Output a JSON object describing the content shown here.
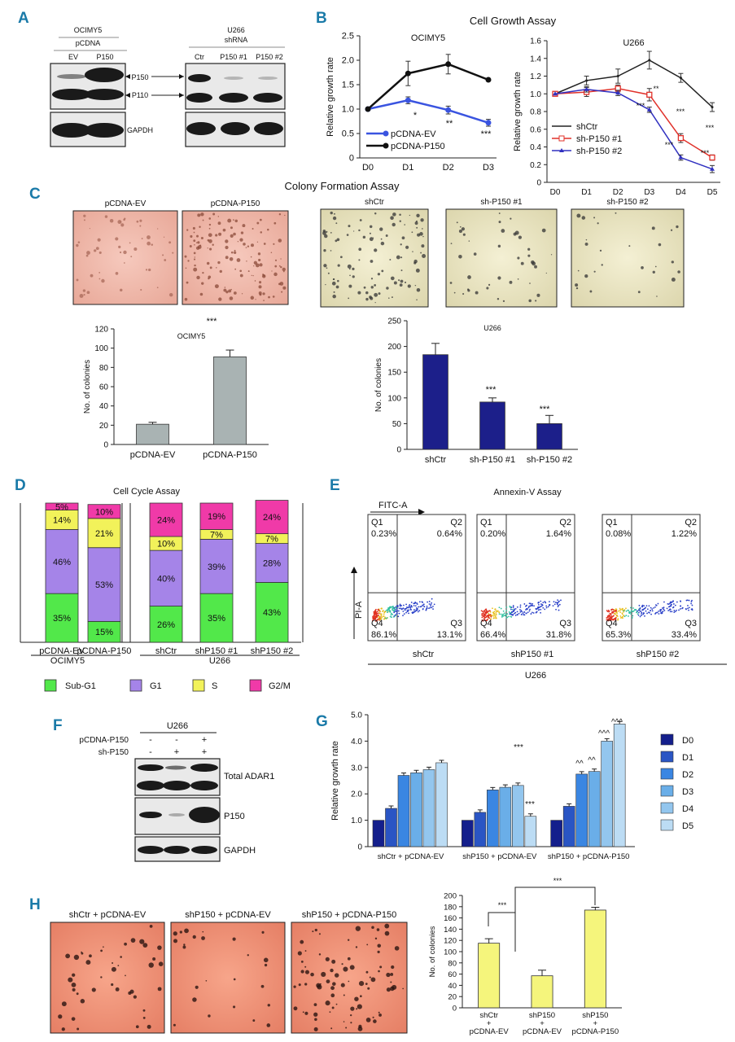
{
  "panels": {
    "A": {
      "letter": "A",
      "left": {
        "cell": "OCIMY5",
        "construct": "pCDNA",
        "lanes": [
          "EV",
          "P150"
        ]
      },
      "right": {
        "cell": "U266",
        "construct": "shRNA",
        "lanes": [
          "Ctr",
          "P150 #1",
          "P150 #2"
        ]
      },
      "bands": [
        "P150",
        "P110"
      ],
      "loading": "GAPDH"
    },
    "B": {
      "letter": "B",
      "title": "Cell Growth Assay",
      "stars_ocimy5": [
        "*",
        "**",
        "***"
      ],
      "stars_u266": [
        "**",
        "***",
        "***",
        "***",
        "***",
        "***",
        "***"
      ]
    },
    "C": {
      "letter": "C",
      "title": "Colony Formation Assay",
      "images": [
        "pCDNA-EV",
        "pCDNA-P150",
        "shCtr",
        "sh-P150 #1",
        "sh-P150 #2"
      ],
      "stars_ocimy5": [
        "***"
      ],
      "stars_u266": [
        "***",
        "***"
      ]
    },
    "D": {
      "letter": "D",
      "title": "Cell Cycle Assay",
      "groups": [
        "OCIMY5",
        "U266"
      ],
      "legend": [
        "Sub-G1",
        "G1",
        "S",
        "G2/M"
      ]
    },
    "E": {
      "letter": "E",
      "title": "Annexin-V Assay",
      "x_axis": "FITC-A",
      "y_axis": "PI-A",
      "group": "U266",
      "plots": [
        {
          "name": "shCtr",
          "q1": "0.23%",
          "q2": "0.64%",
          "q3": "13.1%",
          "q4": "86.1%"
        },
        {
          "name": "shP150 #1",
          "q1": "0.20%",
          "q2": "1.64%",
          "q3": "31.8%",
          "q4": "66.4%"
        },
        {
          "name": "shP150 #2",
          "q1": "0.08%",
          "q2": "1.22%",
          "q3": "33.4%",
          "q4": "65.3%"
        }
      ],
      "quadrants": [
        "Q1",
        "Q2",
        "Q3",
        "Q4"
      ]
    },
    "F": {
      "letter": "F",
      "cell": "U266",
      "rows": [
        {
          "label": "pCDNA-P150",
          "signs": [
            "-",
            "-",
            "+"
          ]
        },
        {
          "label": "sh-P150",
          "signs": [
            "-",
            "+",
            "+"
          ]
        }
      ],
      "blots": [
        "Total ADAR1",
        "P150",
        "GAPDH"
      ]
    },
    "G": {
      "letter": "G",
      "stars": [
        "***",
        "***"
      ],
      "hats": [
        "^^",
        "^^",
        "^^^",
        "^^^"
      ]
    },
    "H": {
      "letter": "H",
      "images": [
        "shCtr + pCDNA-EV",
        "shP150 + pCDNA-EV",
        "shP150 + pCDNA-P150"
      ],
      "stars": [
        "***",
        "***"
      ]
    }
  },
  "chart_data": [
    {
      "id": "B-left",
      "type": "line",
      "title": "OCIMY5",
      "xlabel": "",
      "ylabel": "Relative growth rate",
      "categories": [
        "D0",
        "D1",
        "D2",
        "D3"
      ],
      "ylim": [
        0,
        2.5
      ],
      "yticks": [
        "0",
        "0.5",
        "1.0",
        "1.5",
        "2.0",
        "2.5"
      ],
      "series": [
        {
          "name": "pCDNA-EV",
          "color": "#3a54e0",
          "values": [
            1.0,
            1.18,
            0.98,
            0.72
          ],
          "err": [
            0,
            0.07,
            0.08,
            0.07
          ]
        },
        {
          "name": "pCDNA-P150",
          "color": "#111111",
          "values": [
            1.0,
            1.73,
            1.92,
            1.6
          ],
          "err": [
            0,
            0.25,
            0.2,
            0
          ]
        }
      ]
    },
    {
      "id": "B-right",
      "type": "line",
      "title": "U266",
      "xlabel": "",
      "ylabel": "Relative growth rate",
      "categories": [
        "D0",
        "D1",
        "D2",
        "D3",
        "D4",
        "D5"
      ],
      "ylim": [
        0,
        1.6
      ],
      "yticks": [
        "0",
        "0.2",
        "0.4",
        "0.6",
        "0.8",
        "1.0",
        "1.2",
        "1.4",
        "1.6"
      ],
      "series": [
        {
          "name": "shCtr",
          "color": "#222222",
          "values": [
            1.0,
            1.15,
            1.2,
            1.38,
            1.18,
            0.85
          ],
          "err": [
            0,
            0.05,
            0.08,
            0.1,
            0.05,
            0.05
          ]
        },
        {
          "name": "sh-P150 #1",
          "color": "#e0312a",
          "values": [
            1.0,
            1.02,
            1.06,
            0.99,
            0.5,
            0.28
          ],
          "err": [
            0,
            0.05,
            0.04,
            0.07,
            0.05,
            0.03
          ]
        },
        {
          "name": "sh-P150 #2",
          "color": "#3030c0",
          "values": [
            1.0,
            1.05,
            1.01,
            0.82,
            0.28,
            0.15
          ],
          "err": [
            0,
            0.03,
            0.03,
            0.03,
            0.03,
            0.04
          ]
        }
      ]
    },
    {
      "id": "C-left",
      "type": "bar",
      "title": "OCIMY5",
      "ylabel": "No. of colonies",
      "color": "#a9b3b3",
      "categories": [
        "pCDNA-EV",
        "pCDNA-P150"
      ],
      "values": [
        21,
        91
      ],
      "err": [
        2,
        7
      ],
      "ylim": [
        0,
        120
      ],
      "yticks": [
        "0",
        "20",
        "40",
        "60",
        "80",
        "100",
        "120"
      ]
    },
    {
      "id": "C-right",
      "type": "bar",
      "title": "U266",
      "ylabel": "No. of colonies",
      "color": "#1c1f8a",
      "categories": [
        "shCtr",
        "sh-P150 #1",
        "sh-P150 #2"
      ],
      "values": [
        184,
        92,
        50
      ],
      "err": [
        22,
        8,
        16
      ],
      "ylim": [
        0,
        250
      ],
      "yticks": [
        "0",
        "50",
        "100",
        "150",
        "200",
        "250"
      ]
    },
    {
      "id": "D",
      "type": "bar",
      "stacked": true,
      "title": "Cell Cycle Assay",
      "categories": [
        "pCDNA-EV",
        "pCDNA-P150",
        "shCtr",
        "shP150 #1",
        "shP150 #2"
      ],
      "series": [
        {
          "name": "Sub-G1",
          "color": "#52e84a",
          "values": [
            35,
            15,
            26,
            35,
            43
          ],
          "labels": [
            "35%",
            "15%",
            "26%",
            "35%",
            "43%"
          ]
        },
        {
          "name": "G1",
          "color": "#a584e8",
          "values": [
            46,
            53,
            40,
            39,
            28
          ],
          "labels": [
            "46%",
            "53%",
            "40%",
            "39%",
            "28%"
          ]
        },
        {
          "name": "S",
          "color": "#f2f25a",
          "values": [
            14,
            21,
            10,
            7,
            7
          ],
          "labels": [
            "14%",
            "21%",
            "10%",
            "7%",
            "7%"
          ]
        },
        {
          "name": "G2/M",
          "color": "#f03aa8",
          "values": [
            5,
            10,
            24,
            19,
            24
          ],
          "labels": [
            "5%",
            "10%",
            "24%",
            "19%",
            "24%"
          ]
        }
      ]
    },
    {
      "id": "G",
      "type": "bar",
      "ylabel": "Relative growth rate",
      "categories": [
        "shCtr + pCDNA-EV",
        "shP150 + pCDNA-EV",
        "shP150 + pCDNA-P150"
      ],
      "ylim": [
        0,
        5.0
      ],
      "yticks": [
        "0",
        "1.0",
        "2.0",
        "3.0",
        "4.0",
        "5.0"
      ],
      "series": [
        {
          "name": "D0",
          "color": "#141f8c",
          "values": [
            1.0,
            1.0,
            1.0
          ]
        },
        {
          "name": "D1",
          "color": "#2a55c4",
          "values": [
            1.45,
            1.3,
            1.53
          ]
        },
        {
          "name": "D2",
          "color": "#3a86e2",
          "values": [
            2.7,
            2.15,
            2.75
          ]
        },
        {
          "name": "D3",
          "color": "#6aaee8",
          "values": [
            2.8,
            2.25,
            2.85
          ]
        },
        {
          "name": "D4",
          "color": "#93c6ee",
          "values": [
            2.92,
            2.32,
            4.0
          ]
        },
        {
          "name": "D5",
          "color": "#bcdcf4",
          "values": [
            3.18,
            1.15,
            4.65
          ]
        }
      ]
    },
    {
      "id": "H",
      "type": "bar",
      "ylabel": "No. of colonies",
      "color": "#f5f57c",
      "categories": [
        "shCtr + pCDNA-EV",
        "shP150 + pCDNA-EV",
        "shP150 + pCDNA-P150"
      ],
      "category_lines": [
        [
          "shCtr",
          "+",
          "pCDNA-EV"
        ],
        [
          "shP150",
          "+",
          "pCDNA-EV"
        ],
        [
          "shP150",
          "+",
          "pCDNA-P150"
        ]
      ],
      "values": [
        115,
        57,
        174
      ],
      "err": [
        8,
        10,
        5
      ],
      "ylim": [
        0,
        200
      ],
      "yticks": [
        "0",
        "20",
        "40",
        "60",
        "80",
        "100",
        "120",
        "140",
        "160",
        "180",
        "200"
      ]
    }
  ]
}
